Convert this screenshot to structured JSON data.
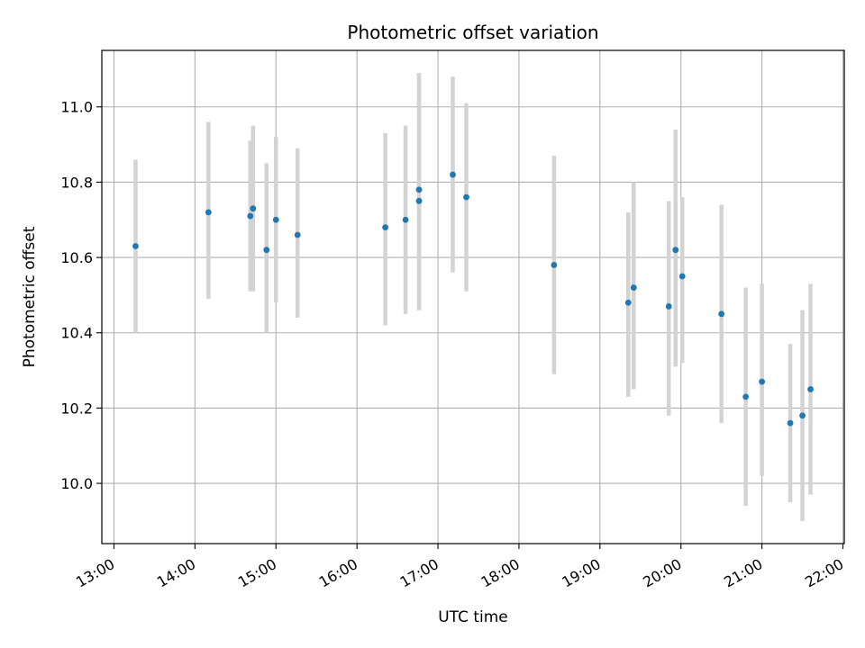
{
  "chart_data": {
    "type": "scatter",
    "title": "Photometric offset variation",
    "xlabel": "UTC time",
    "ylabel": "Photometric offset",
    "x_ticks": [
      "13:00",
      "14:00",
      "15:00",
      "16:00",
      "17:00",
      "18:00",
      "19:00",
      "20:00",
      "21:00",
      "22:00"
    ],
    "y_ticks": [
      "10.0",
      "10.2",
      "10.4",
      "10.6",
      "10.8",
      "11.0"
    ],
    "xlim": [
      "12:51",
      "22:01"
    ],
    "ylim": [
      9.84,
      11.15
    ],
    "grid": true,
    "marker_color": "#1f77b4",
    "errorbar_color": "#d3d3d3",
    "points": [
      {
        "x": "13:16",
        "y": 10.63,
        "yerr_low": 10.4,
        "yerr_high": 10.86
      },
      {
        "x": "14:10",
        "y": 10.72,
        "yerr_low": 10.49,
        "yerr_high": 10.96
      },
      {
        "x": "14:41",
        "y": 10.71,
        "yerr_low": 10.51,
        "yerr_high": 10.91
      },
      {
        "x": "14:43",
        "y": 10.73,
        "yerr_low": 10.51,
        "yerr_high": 10.95
      },
      {
        "x": "14:53",
        "y": 10.62,
        "yerr_low": 10.4,
        "yerr_high": 10.85
      },
      {
        "x": "15:00",
        "y": 10.7,
        "yerr_low": 10.48,
        "yerr_high": 10.92
      },
      {
        "x": "15:16",
        "y": 10.66,
        "yerr_low": 10.44,
        "yerr_high": 10.89
      },
      {
        "x": "16:21",
        "y": 10.68,
        "yerr_low": 10.42,
        "yerr_high": 10.93
      },
      {
        "x": "16:36",
        "y": 10.7,
        "yerr_low": 10.45,
        "yerr_high": 10.95
      },
      {
        "x": "16:46",
        "y": 10.78,
        "yerr_low": 10.46,
        "yerr_high": 11.09
      },
      {
        "x": "16:46",
        "y": 10.75,
        "yerr_low": 10.46,
        "yerr_high": 11.09
      },
      {
        "x": "17:11",
        "y": 10.82,
        "yerr_low": 10.56,
        "yerr_high": 11.08
      },
      {
        "x": "17:21",
        "y": 10.76,
        "yerr_low": 10.51,
        "yerr_high": 11.01
      },
      {
        "x": "18:26",
        "y": 10.58,
        "yerr_low": 10.29,
        "yerr_high": 10.87
      },
      {
        "x": "19:21",
        "y": 10.48,
        "yerr_low": 10.23,
        "yerr_high": 10.72
      },
      {
        "x": "19:25",
        "y": 10.52,
        "yerr_low": 10.25,
        "yerr_high": 10.8
      },
      {
        "x": "19:51",
        "y": 10.47,
        "yerr_low": 10.18,
        "yerr_high": 10.75
      },
      {
        "x": "19:56",
        "y": 10.62,
        "yerr_low": 10.31,
        "yerr_high": 10.94
      },
      {
        "x": "20:01",
        "y": 10.55,
        "yerr_low": 10.32,
        "yerr_high": 10.76
      },
      {
        "x": "20:30",
        "y": 10.45,
        "yerr_low": 10.16,
        "yerr_high": 10.74
      },
      {
        "x": "20:48",
        "y": 10.23,
        "yerr_low": 9.94,
        "yerr_high": 10.52
      },
      {
        "x": "21:00",
        "y": 10.27,
        "yerr_low": 10.02,
        "yerr_high": 10.53
      },
      {
        "x": "21:21",
        "y": 10.16,
        "yerr_low": 9.95,
        "yerr_high": 10.37
      },
      {
        "x": "21:30",
        "y": 10.18,
        "yerr_low": 9.9,
        "yerr_high": 10.46
      },
      {
        "x": "21:36",
        "y": 10.25,
        "yerr_low": 9.97,
        "yerr_high": 10.53
      }
    ]
  }
}
